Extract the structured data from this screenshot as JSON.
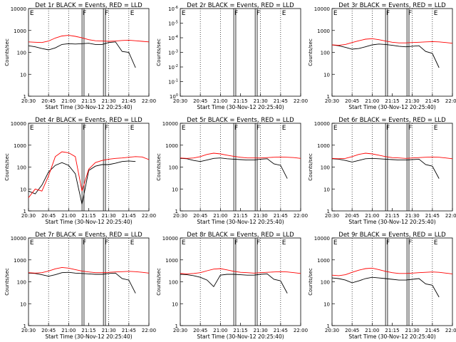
{
  "colors": {
    "events": "#000000",
    "lld": "#ff0000",
    "background": "#ffffff"
  },
  "chart_data": [
    {
      "type": "line",
      "title": "Det 1r BLACK = Events, RED = LLD",
      "ylabel": "Counts/sec",
      "xlabel": "Start Time (30-Nov-12 20:25:40)",
      "x_ticks": [
        "20:30",
        "20:45",
        "21:00",
        "21:15",
        "21:30",
        "21:45",
        "22:00"
      ],
      "xlim_minutes": [
        0,
        90
      ],
      "yscale": "log",
      "ylim": [
        1,
        10000
      ],
      "y_ticks": [
        "1",
        "10",
        "100",
        "1000",
        "10000"
      ],
      "flags": [
        "E",
        "F",
        "F",
        "E"
      ],
      "dotted_lines": [
        15,
        30,
        60,
        75
      ],
      "series": [
        {
          "name": "Events",
          "color": "black",
          "x": [
            0,
            5,
            10,
            15,
            20,
            25,
            30,
            35,
            40,
            45,
            50,
            55,
            60,
            65,
            70,
            75,
            80
          ],
          "y": [
            200,
            180,
            150,
            130,
            160,
            230,
            250,
            240,
            250,
            260,
            230,
            230,
            280,
            300,
            110,
            100,
            20
          ]
        },
        {
          "name": "LLD",
          "color": "red",
          "x": [
            0,
            5,
            10,
            15,
            20,
            25,
            30,
            35,
            40,
            45,
            50,
            55,
            60,
            65,
            70,
            75,
            80,
            85,
            90
          ],
          "y": [
            300,
            290,
            280,
            330,
            450,
            560,
            600,
            540,
            460,
            380,
            340,
            330,
            320,
            330,
            350,
            360,
            340,
            320,
            300
          ]
        }
      ]
    },
    {
      "type": "line",
      "title": "Det 2r BLACK = Events, RED = LLD",
      "ylabel": "Counts/sec",
      "xlabel": "Start Time (30-Nov-12 20:25:40)",
      "x_ticks": [
        "20:30",
        "20:45",
        "21:00",
        "21:15",
        "21:30",
        "21:45",
        "22:00"
      ],
      "xlim_minutes": [
        0,
        90
      ],
      "yscale": "log",
      "ylim": [
        1,
        1e-06
      ],
      "y_ticks": [
        "10^0",
        "10^-1",
        "10^-2",
        "10^-3",
        "10^-4",
        "10^-5",
        "10^-6"
      ],
      "flags": [
        "E",
        "F",
        "F",
        "E"
      ],
      "dotted_lines": [
        15,
        30,
        60,
        75
      ],
      "series": []
    },
    {
      "type": "line",
      "title": "Det 3r BLACK = Events, RED = LLD",
      "ylabel": "Counts/sec",
      "xlabel": "Start Time (30-Nov-12 20:25:40)",
      "x_ticks": [
        "20:30",
        "20:45",
        "21:00",
        "21:15",
        "21:30",
        "21:45",
        "22:00"
      ],
      "xlim_minutes": [
        0,
        90
      ],
      "yscale": "log",
      "ylim": [
        1,
        10000
      ],
      "y_ticks": [
        "1",
        "10",
        "100",
        "1000",
        "10000"
      ],
      "flags": [
        "E",
        "F",
        "F",
        "E"
      ],
      "dotted_lines": [
        15,
        30,
        60,
        75
      ],
      "series": [
        {
          "name": "Events",
          "color": "black",
          "x": [
            0,
            5,
            10,
            15,
            20,
            25,
            30,
            35,
            40,
            45,
            50,
            55,
            60,
            65,
            70,
            75,
            80
          ],
          "y": [
            220,
            200,
            170,
            140,
            150,
            180,
            220,
            240,
            230,
            210,
            190,
            180,
            190,
            200,
            110,
            90,
            20
          ]
        },
        {
          "name": "LLD",
          "color": "red",
          "x": [
            0,
            5,
            10,
            15,
            20,
            25,
            30,
            35,
            40,
            45,
            50,
            55,
            60,
            65,
            70,
            75,
            80,
            85,
            90
          ],
          "y": [
            220,
            210,
            230,
            280,
            340,
            400,
            420,
            380,
            330,
            290,
            270,
            270,
            280,
            290,
            300,
            310,
            300,
            280,
            260
          ]
        }
      ]
    },
    {
      "type": "line",
      "title": "Det 4r BLACK = Events, RED = LLD",
      "ylabel": "Counts/sec",
      "xlabel": "Start Time (30-Nov-12 20:25:40)",
      "x_ticks": [
        "20:30",
        "20:45",
        "21:00",
        "21:15",
        "21:30",
        "21:45",
        "22:00"
      ],
      "xlim_minutes": [
        0,
        90
      ],
      "yscale": "log",
      "ylim": [
        1,
        10000
      ],
      "y_ticks": [
        "1",
        "10",
        "100",
        "1000",
        "10000"
      ],
      "flags": [
        "E",
        "F",
        "F",
        "E"
      ],
      "dotted_lines": [
        15,
        30,
        60,
        75
      ],
      "series": [
        {
          "name": "Events",
          "color": "black",
          "x": [
            0,
            5,
            10,
            15,
            20,
            25,
            30,
            35,
            40,
            45,
            50,
            55,
            60,
            65,
            70,
            75,
            80
          ],
          "y": [
            8,
            6,
            15,
            60,
            120,
            160,
            120,
            50,
            2,
            70,
            110,
            130,
            130,
            150,
            180,
            190,
            180
          ]
        },
        {
          "name": "LLD",
          "color": "red",
          "x": [
            0,
            5,
            10,
            15,
            20,
            25,
            30,
            35,
            40,
            45,
            50,
            55,
            60,
            65,
            70,
            75,
            80,
            85,
            90
          ],
          "y": [
            4,
            10,
            8,
            40,
            300,
            500,
            450,
            300,
            8,
            80,
            160,
            200,
            230,
            250,
            260,
            280,
            300,
            290,
            220
          ]
        }
      ]
    },
    {
      "type": "line",
      "title": "Det 5r BLACK = Events, RED = LLD",
      "ylabel": "Counts/sec",
      "xlabel": "Start Time (30-Nov-12 20:25:40)",
      "x_ticks": [
        "20:30",
        "20:45",
        "21:00",
        "21:15",
        "21:30",
        "21:45",
        "22:00"
      ],
      "xlim_minutes": [
        0,
        90
      ],
      "yscale": "log",
      "ylim": [
        1,
        10000
      ],
      "y_ticks": [
        "1",
        "10",
        "100",
        "1000",
        "10000"
      ],
      "flags": [
        "E",
        "F",
        "F",
        "E"
      ],
      "dotted_lines": [
        15,
        30,
        60,
        75
      ],
      "series": [
        {
          "name": "Events",
          "color": "black",
          "x": [
            0,
            5,
            10,
            15,
            20,
            25,
            30,
            35,
            40,
            45,
            50,
            55,
            60,
            65,
            70,
            75,
            80
          ],
          "y": [
            250,
            240,
            200,
            180,
            210,
            250,
            260,
            240,
            230,
            220,
            210,
            210,
            230,
            240,
            140,
            120,
            30
          ]
        },
        {
          "name": "LLD",
          "color": "red",
          "x": [
            0,
            5,
            10,
            15,
            20,
            25,
            30,
            35,
            40,
            45,
            50,
            55,
            60,
            65,
            70,
            75,
            80,
            85,
            90
          ],
          "y": [
            260,
            250,
            260,
            300,
            380,
            430,
            400,
            350,
            310,
            280,
            260,
            260,
            260,
            270,
            280,
            290,
            280,
            270,
            250
          ]
        }
      ]
    },
    {
      "type": "line",
      "title": "Det 6r BLACK = Events, RED = LLD",
      "ylabel": "Counts/sec",
      "xlabel": "Start Time (30-Nov-12 20:25:40)",
      "x_ticks": [
        "20:30",
        "20:45",
        "21:00",
        "21:15",
        "21:30",
        "21:45",
        "22:00"
      ],
      "xlim_minutes": [
        0,
        90
      ],
      "yscale": "log",
      "ylim": [
        1,
        10000
      ],
      "y_ticks": [
        "1",
        "10",
        "100",
        "1000",
        "10000"
      ],
      "flags": [
        "E",
        "F",
        "F",
        "E"
      ],
      "dotted_lines": [
        15,
        30,
        60,
        75
      ],
      "series": [
        {
          "name": "Events",
          "color": "black",
          "x": [
            0,
            5,
            10,
            15,
            20,
            25,
            30,
            35,
            40,
            45,
            50,
            55,
            60,
            65,
            70,
            75,
            80
          ],
          "y": [
            240,
            230,
            200,
            170,
            200,
            240,
            250,
            240,
            230,
            220,
            210,
            210,
            220,
            230,
            130,
            110,
            30
          ]
        },
        {
          "name": "LLD",
          "color": "red",
          "x": [
            0,
            5,
            10,
            15,
            20,
            25,
            30,
            35,
            40,
            45,
            50,
            55,
            60,
            65,
            70,
            75,
            80,
            85,
            90
          ],
          "y": [
            250,
            240,
            250,
            300,
            380,
            430,
            400,
            350,
            300,
            270,
            260,
            250,
            260,
            270,
            280,
            290,
            280,
            260,
            240
          ]
        }
      ]
    },
    {
      "type": "line",
      "title": "Det 7r BLACK = Events, RED = LLD",
      "ylabel": "Counts/sec",
      "xlabel": "Start Time (30-Nov-12 20:25:40)",
      "x_ticks": [
        "20:30",
        "20:45",
        "21:00",
        "21:15",
        "21:30",
        "21:45",
        "22:00"
      ],
      "xlim_minutes": [
        0,
        90
      ],
      "yscale": "log",
      "ylim": [
        1,
        10000
      ],
      "y_ticks": [
        "1",
        "10",
        "100",
        "1000",
        "10000"
      ],
      "flags": [
        "E",
        "F",
        "F",
        "E"
      ],
      "dotted_lines": [
        15,
        30,
        60,
        75
      ],
      "series": [
        {
          "name": "Events",
          "color": "black",
          "x": [
            0,
            5,
            10,
            15,
            20,
            25,
            30,
            35,
            40,
            45,
            50,
            55,
            60,
            65,
            70,
            75,
            80
          ],
          "y": [
            250,
            240,
            210,
            180,
            210,
            260,
            270,
            250,
            240,
            230,
            220,
            220,
            240,
            250,
            140,
            120,
            30
          ]
        },
        {
          "name": "LLD",
          "color": "red",
          "x": [
            0,
            5,
            10,
            15,
            20,
            25,
            30,
            35,
            40,
            45,
            50,
            55,
            60,
            65,
            70,
            75,
            80,
            85,
            90
          ],
          "y": [
            260,
            250,
            260,
            310,
            390,
            450,
            420,
            360,
            310,
            280,
            260,
            260,
            270,
            280,
            290,
            300,
            290,
            270,
            250
          ]
        }
      ]
    },
    {
      "type": "line",
      "title": "Det 8r BLACK = Events, RED = LLD",
      "ylabel": "Counts/sec",
      "xlabel": "Start Time (30-Nov-12 20:25:40)",
      "x_ticks": [
        "20:30",
        "20:45",
        "21:00",
        "21:15",
        "21:30",
        "21:45",
        "22:00"
      ],
      "xlim_minutes": [
        0,
        90
      ],
      "yscale": "log",
      "ylim": [
        1,
        10000
      ],
      "y_ticks": [
        "1",
        "10",
        "100",
        "1000",
        "10000"
      ],
      "flags": [
        "E",
        "F",
        "F",
        "E"
      ],
      "dotted_lines": [
        15,
        30,
        60,
        75
      ],
      "series": [
        {
          "name": "Events",
          "color": "black",
          "x": [
            0,
            5,
            10,
            15,
            20,
            25,
            30,
            35,
            40,
            45,
            50,
            55,
            60,
            65,
            70,
            75,
            80
          ],
          "y": [
            220,
            210,
            190,
            160,
            120,
            60,
            200,
            220,
            220,
            210,
            200,
            200,
            220,
            230,
            130,
            110,
            30
          ]
        },
        {
          "name": "LLD",
          "color": "red",
          "x": [
            0,
            5,
            10,
            15,
            20,
            25,
            30,
            35,
            40,
            45,
            50,
            55,
            60,
            65,
            70,
            75,
            80,
            85,
            90
          ],
          "y": [
            240,
            230,
            240,
            260,
            320,
            380,
            400,
            350,
            300,
            270,
            260,
            250,
            260,
            270,
            280,
            290,
            280,
            260,
            240
          ]
        }
      ]
    },
    {
      "type": "line",
      "title": "Det 9r BLACK = Events, RED = LLD",
      "ylabel": "Counts/sec",
      "xlabel": "Start Time (30-Nov-12 20:25:40)",
      "x_ticks": [
        "20:30",
        "20:45",
        "21:00",
        "21:15",
        "21:30",
        "21:45",
        "22:00"
      ],
      "xlim_minutes": [
        0,
        90
      ],
      "yscale": "log",
      "ylim": [
        1,
        10000
      ],
      "y_ticks": [
        "1",
        "10",
        "100",
        "1000",
        "10000"
      ],
      "flags": [
        "E",
        "F",
        "F",
        "E"
      ],
      "dotted_lines": [
        15,
        30,
        60,
        75
      ],
      "series": [
        {
          "name": "Events",
          "color": "black",
          "x": [
            0,
            5,
            10,
            15,
            20,
            25,
            30,
            35,
            40,
            45,
            50,
            55,
            60,
            65,
            70,
            75,
            80
          ],
          "y": [
            150,
            140,
            120,
            90,
            110,
            140,
            160,
            150,
            140,
            130,
            120,
            120,
            130,
            140,
            80,
            70,
            20
          ]
        },
        {
          "name": "LLD",
          "color": "red",
          "x": [
            0,
            5,
            10,
            15,
            20,
            25,
            30,
            35,
            40,
            45,
            50,
            55,
            60,
            65,
            70,
            75,
            80,
            85,
            90
          ],
          "y": [
            200,
            190,
            210,
            270,
            340,
            400,
            420,
            360,
            300,
            260,
            240,
            240,
            250,
            260,
            270,
            280,
            270,
            250,
            230
          ]
        }
      ]
    }
  ]
}
